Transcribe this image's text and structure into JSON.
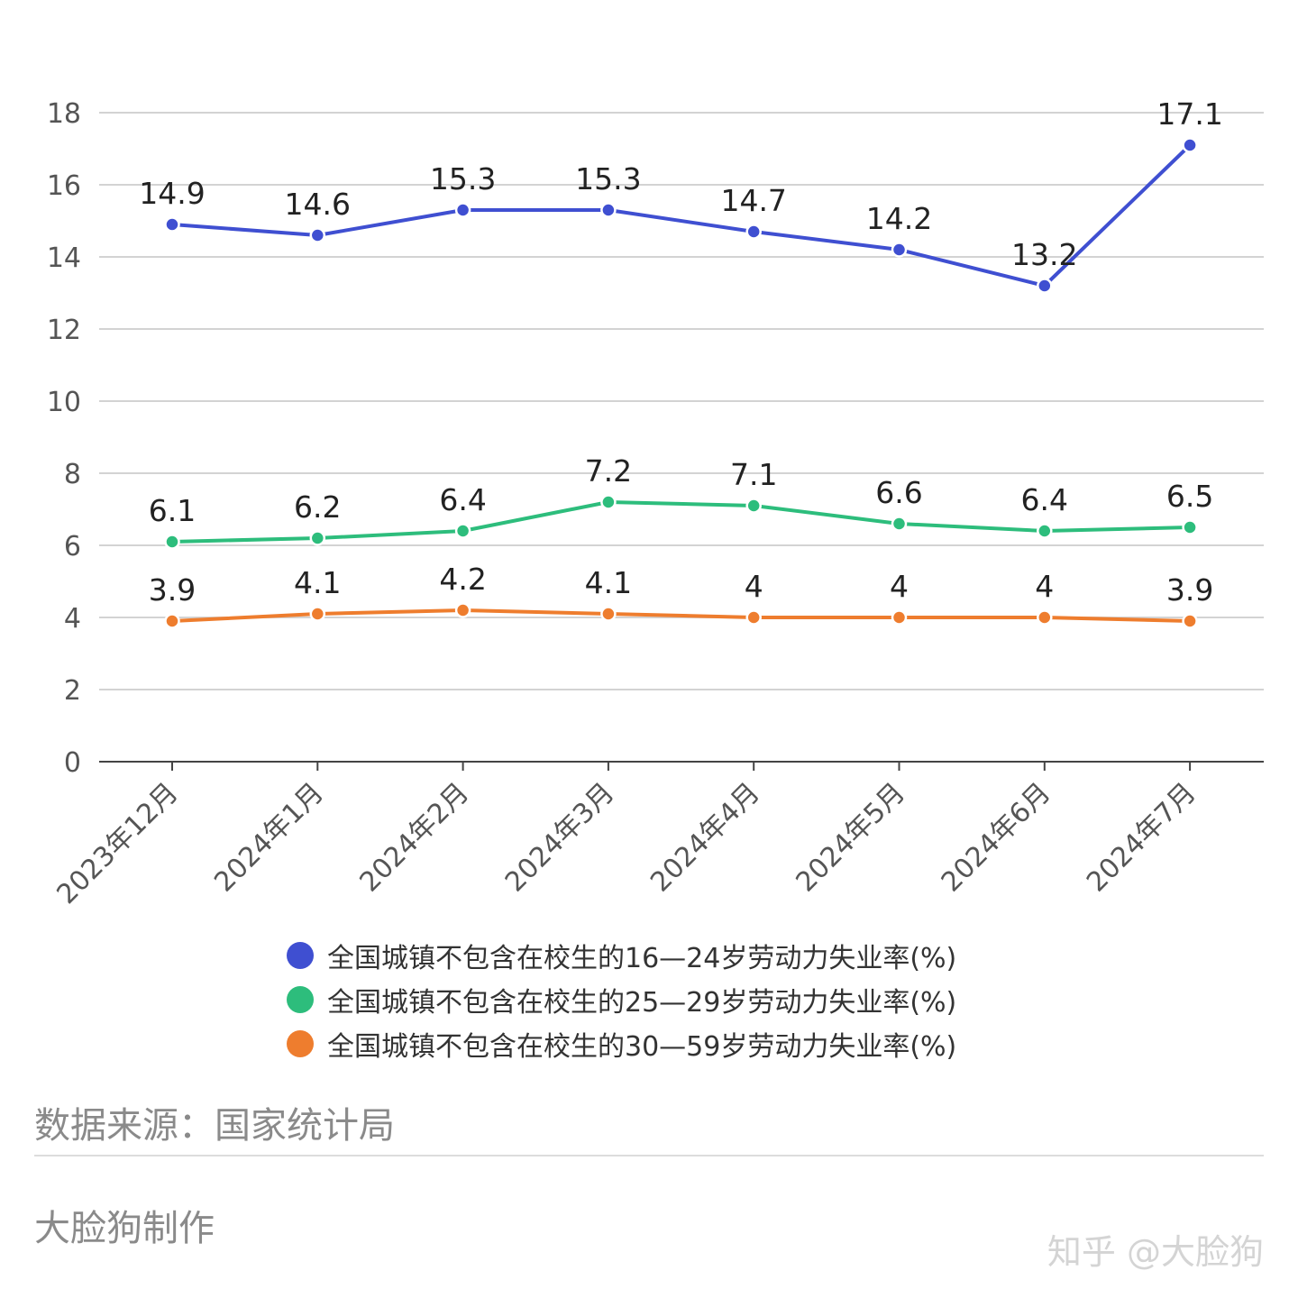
{
  "chart_data": {
    "type": "line",
    "categories": [
      "2023年12月",
      "2024年1月",
      "2024年2月",
      "2024年3月",
      "2024年4月",
      "2024年5月",
      "2024年6月",
      "2024年7月"
    ],
    "series": [
      {
        "name": "全国城镇不包含在校生的16—24岁劳动力失业率(%)",
        "color": "#3f4fd1",
        "values": [
          14.9,
          14.6,
          15.3,
          15.3,
          14.7,
          14.2,
          13.2,
          17.1
        ],
        "labels": [
          "14.9",
          "14.6",
          "15.3",
          "15.3",
          "14.7",
          "14.2",
          "13.2",
          "17.1"
        ]
      },
      {
        "name": "全国城镇不包含在校生的25—29岁劳动力失业率(%)",
        "color": "#2dbd7c",
        "values": [
          6.1,
          6.2,
          6.4,
          7.2,
          7.1,
          6.6,
          6.4,
          6.5
        ],
        "labels": [
          "6.1",
          "6.2",
          "6.4",
          "7.2",
          "7.1",
          "6.6",
          "6.4",
          "6.5"
        ]
      },
      {
        "name": "全国城镇不包含在校生的30—59岁劳动力失业率(%)",
        "color": "#ee7d2e",
        "values": [
          3.9,
          4.1,
          4.2,
          4.1,
          4.0,
          4.0,
          4.0,
          3.9
        ],
        "labels": [
          "3.9",
          "4.1",
          "4.2",
          "4.1",
          "4",
          "4",
          "4",
          "3.9"
        ]
      }
    ],
    "ylim": [
      0,
      18
    ],
    "yticks": [
      "0",
      "2",
      "4",
      "6",
      "8",
      "10",
      "12",
      "14",
      "16",
      "18"
    ],
    "grid": true,
    "legend": "bottom"
  },
  "footer": {
    "source": "数据来源：国家统计局",
    "maker": "大脸狗制作",
    "watermark": "知乎 @大脸狗"
  }
}
